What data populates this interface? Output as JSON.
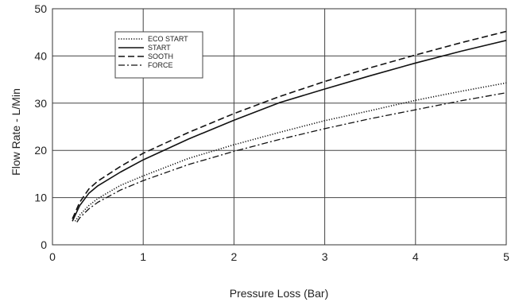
{
  "chart_data": {
    "type": "line",
    "title": "",
    "xlabel": "Pressure Loss (Bar)",
    "ylabel": "Flow Rate - L/Min",
    "xlim": [
      0,
      5
    ],
    "ylim": [
      0,
      50
    ],
    "xticks": [
      "0",
      "1",
      "2",
      "3",
      "4",
      "5"
    ],
    "yticks": [
      "0",
      "10",
      "20",
      "30",
      "40",
      "50"
    ],
    "grid": true,
    "legend_position": "top-left",
    "series": [
      {
        "name": "ECO START",
        "style": "dotted",
        "x": [
          0.25,
          0.3,
          0.4,
          0.5,
          0.75,
          1.0,
          1.5,
          2.0,
          2.5,
          3.0,
          3.5,
          4.0,
          4.5,
          5.0
        ],
        "y": [
          5.0,
          6.3,
          8.3,
          9.8,
          12.6,
          14.6,
          18.3,
          21.2,
          23.8,
          26.3,
          28.4,
          30.6,
          32.5,
          34.3
        ]
      },
      {
        "name": "START",
        "style": "solid",
        "x": [
          0.22,
          0.3,
          0.4,
          0.5,
          0.75,
          1.0,
          1.5,
          2.0,
          2.5,
          3.0,
          3.5,
          4.0,
          4.5,
          5.0
        ],
        "y": [
          5.0,
          8.3,
          10.9,
          12.5,
          15.4,
          18.0,
          22.4,
          26.4,
          30.1,
          33.0,
          35.8,
          38.5,
          41.0,
          43.3
        ]
      },
      {
        "name": "SOOTH",
        "style": "dashed",
        "x": [
          0.22,
          0.3,
          0.4,
          0.5,
          0.75,
          1.0,
          1.5,
          2.0,
          2.5,
          3.0,
          3.5,
          4.0,
          4.5,
          5.0
        ],
        "y": [
          5.5,
          9.0,
          11.8,
          13.5,
          16.6,
          19.4,
          23.8,
          27.8,
          31.4,
          34.6,
          37.5,
          40.2,
          42.8,
          45.2
        ]
      },
      {
        "name": "FORCE",
        "style": "dashdot",
        "x": [
          0.27,
          0.3,
          0.4,
          0.5,
          0.75,
          1.0,
          1.5,
          2.0,
          2.5,
          3.0,
          3.5,
          4.0,
          4.5,
          5.0
        ],
        "y": [
          4.8,
          5.7,
          7.6,
          9.0,
          11.6,
          13.6,
          17.0,
          19.8,
          22.3,
          24.6,
          26.7,
          28.6,
          30.5,
          32.2
        ]
      }
    ]
  }
}
